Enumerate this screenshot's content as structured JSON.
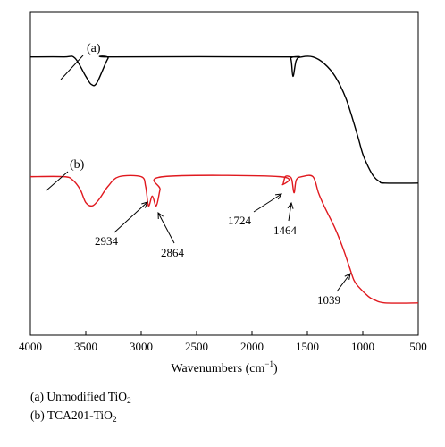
{
  "chart_data": {
    "type": "line",
    "xlabel_main": "Wavenumbers (cm",
    "xlabel_sup": "−1",
    "xlabel_close": ")",
    "xlim": [
      4000,
      500
    ],
    "x_reversed": true,
    "xticks": [
      4000,
      3500,
      3000,
      2500,
      2000,
      1500,
      1000,
      500
    ],
    "yaxis_visible": false,
    "grid": false,
    "series": [
      {
        "name": "(a)",
        "color": "#000000",
        "relative_transmittance": true,
        "points": [
          [
            4000,
            0.86
          ],
          [
            3700,
            0.86
          ],
          [
            3600,
            0.857
          ],
          [
            3500,
            0.8
          ],
          [
            3450,
            0.775
          ],
          [
            3400,
            0.78
          ],
          [
            3300,
            0.855
          ],
          [
            3250,
            0.86
          ],
          [
            1700,
            0.86
          ],
          [
            1650,
            0.855
          ],
          [
            1630,
            0.8
          ],
          [
            1600,
            0.85
          ],
          [
            1550,
            0.86
          ],
          [
            1450,
            0.86
          ],
          [
            1350,
            0.84
          ],
          [
            1250,
            0.8
          ],
          [
            1150,
            0.73
          ],
          [
            1050,
            0.62
          ],
          [
            1000,
            0.56
          ],
          [
            950,
            0.52
          ],
          [
            900,
            0.49
          ],
          [
            850,
            0.475
          ],
          [
            800,
            0.47
          ],
          [
            500,
            0.47
          ]
        ]
      },
      {
        "name": "(b)",
        "color": "#e0191f",
        "relative_transmittance": true,
        "points": [
          [
            4000,
            0.49
          ],
          [
            3700,
            0.49
          ],
          [
            3620,
            0.48
          ],
          [
            3550,
            0.45
          ],
          [
            3500,
            0.41
          ],
          [
            3440,
            0.4
          ],
          [
            3380,
            0.42
          ],
          [
            3300,
            0.46
          ],
          [
            3200,
            0.49
          ],
          [
            3000,
            0.49
          ],
          [
            2960,
            0.46
          ],
          [
            2934,
            0.4
          ],
          [
            2900,
            0.43
          ],
          [
            2864,
            0.4
          ],
          [
            2830,
            0.45
          ],
          [
            2800,
            0.49
          ],
          [
            1750,
            0.49
          ],
          [
            1724,
            0.465
          ],
          [
            1700,
            0.49
          ],
          [
            1660,
            0.49
          ],
          [
            1640,
            0.48
          ],
          [
            1620,
            0.44
          ],
          [
            1600,
            0.48
          ],
          [
            1550,
            0.49
          ],
          [
            1450,
            0.49
          ],
          [
            1400,
            0.44
          ],
          [
            1350,
            0.4
          ],
          [
            1250,
            0.33
          ],
          [
            1180,
            0.27
          ],
          [
            1120,
            0.21
          ],
          [
            1080,
            0.17
          ],
          [
            1039,
            0.15
          ],
          [
            950,
            0.12
          ],
          [
            900,
            0.11
          ],
          [
            800,
            0.1
          ],
          [
            500,
            0.1
          ]
        ]
      }
    ],
    "curve_labels": [
      "(a)",
      "(b)"
    ],
    "annotations": [
      {
        "text": "2934",
        "x": 2934
      },
      {
        "text": "2864",
        "x": 2864
      },
      {
        "text": "1724",
        "x": 1724
      },
      {
        "text": "1464",
        "x": 1464
      },
      {
        "text": "1039",
        "x": 1039
      }
    ],
    "legend": [
      {
        "prefix": "(a) Unmodified TiO",
        "sub": "2"
      },
      {
        "prefix": "(b) TCA201-TiO",
        "sub": "2"
      }
    ]
  }
}
